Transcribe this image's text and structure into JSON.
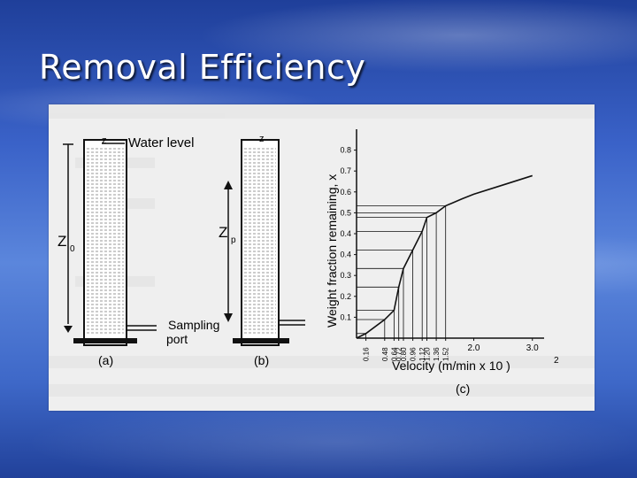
{
  "slide": {
    "title": "Removal Efficiency"
  },
  "figure": {
    "colors": {
      "panel": "#efefef",
      "ink": "#111111",
      "water": "#9a9a9a"
    },
    "panel_a": {
      "water_level": "Water level",
      "top_symbol": "z",
      "depth_symbol": "Z",
      "depth_subscript": "0",
      "sampling": "Sampling",
      "port": "port",
      "caption": "(a)"
    },
    "panel_b": {
      "top_symbol": "z",
      "depth_symbol": "Z",
      "depth_subscript": "p",
      "caption": "(b)"
    },
    "panel_c": {
      "caption": "(c)"
    }
  },
  "chart_data": {
    "type": "line",
    "title": "",
    "xlabel": "Velocity (m/min x 10  )",
    "xlabel_superscript": "2",
    "ylabel": "Weight fraction remaining, x",
    "xlim": [
      0,
      3.2
    ],
    "ylim": [
      0,
      0.9
    ],
    "y_ticks": [
      "0.1",
      "0.2",
      "0.3",
      "0.4",
      "0.4",
      "0.5",
      "0.6",
      "0.7",
      "0.8"
    ],
    "x_ticks": [
      "0.16",
      "0.48",
      "0.64",
      "0.72",
      "0.80",
      "0.96",
      "1.12",
      "1.20",
      "1.36",
      "1.52",
      "2.0",
      "3.0"
    ],
    "series": [
      {
        "x": [
          0.0,
          0.16,
          0.48,
          0.64,
          0.72,
          0.8,
          0.96,
          1.12,
          1.2,
          1.36,
          1.52,
          1.8,
          2.0,
          2.5,
          3.0
        ],
        "y": [
          0.0,
          0.02,
          0.08,
          0.12,
          0.22,
          0.3,
          0.38,
          0.46,
          0.52,
          0.54,
          0.57,
          0.6,
          0.62,
          0.66,
          0.7
        ]
      }
    ],
    "grid": false
  }
}
